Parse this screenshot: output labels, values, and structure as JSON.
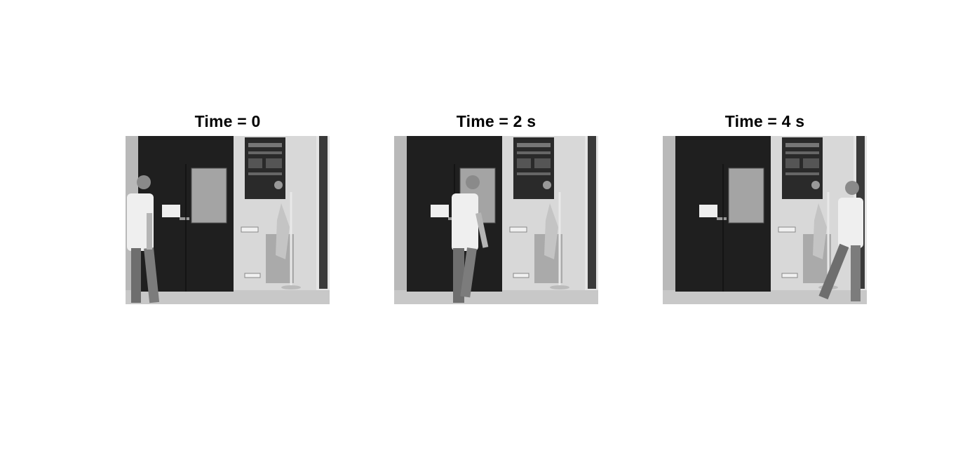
{
  "figure": {
    "panels": [
      {
        "title": "Time = 0",
        "person_position": "left"
      },
      {
        "title": "Time = 2 s",
        "person_position": "center"
      },
      {
        "title": "Time = 4 s",
        "person_position": "right"
      }
    ],
    "colors": {
      "wall": "#dcdcdc",
      "door": "#1e1e1e",
      "floor": "#c9c9c9",
      "glass": "#a5a5a5",
      "poster": "#2a2a2a"
    }
  }
}
